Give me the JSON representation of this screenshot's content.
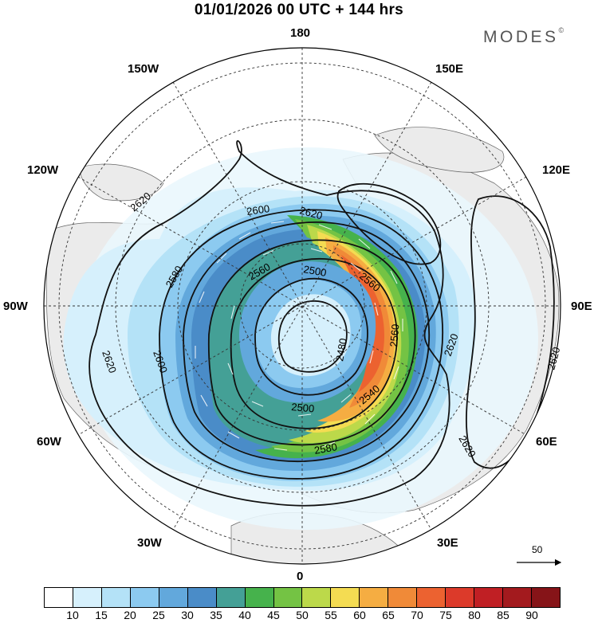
{
  "title": "01/01/2026  00 UTC  + 144 hrs",
  "brand": {
    "name": "MODES",
    "mark": "©"
  },
  "longitude_labels": {
    "top": "180",
    "top_left": "150W",
    "top_right": "150E",
    "upper_left": "120W",
    "upper_right": "120E",
    "left": "90W",
    "right": "90E",
    "lower_left": "60W",
    "lower_right": "60E",
    "bottom_left": "30W",
    "bottom_right": "30E",
    "bottom": "0"
  },
  "contour_labels": [
    "2620",
    "2600",
    "2620",
    "2580",
    "2560",
    "2500",
    "2560",
    "2480",
    "2560",
    "2620",
    "2620",
    "2620",
    "2600",
    "2540",
    "2500",
    "2580",
    "2620"
  ],
  "wind_scale": {
    "value": "50"
  },
  "colorbar": {
    "ticks": [
      "10",
      "15",
      "20",
      "25",
      "30",
      "35",
      "40",
      "45",
      "50",
      "55",
      "60",
      "65",
      "70",
      "75",
      "80",
      "85",
      "90"
    ],
    "colors": [
      "#ffffff",
      "#d6f0fc",
      "#b4e2f7",
      "#8ccaf0",
      "#62a8dc",
      "#4a8cc8",
      "#44a096",
      "#46b24c",
      "#74c344",
      "#bcd94a",
      "#f4dc52",
      "#f5ad42",
      "#f08a38",
      "#ec6230",
      "#dc3a2a",
      "#c01f24",
      "#a31a1e",
      "#861418"
    ]
  },
  "colors": {
    "land": "#ebebeb",
    "ocean": "#ffffff",
    "contour": "#111111",
    "graticule": "#333333"
  }
}
